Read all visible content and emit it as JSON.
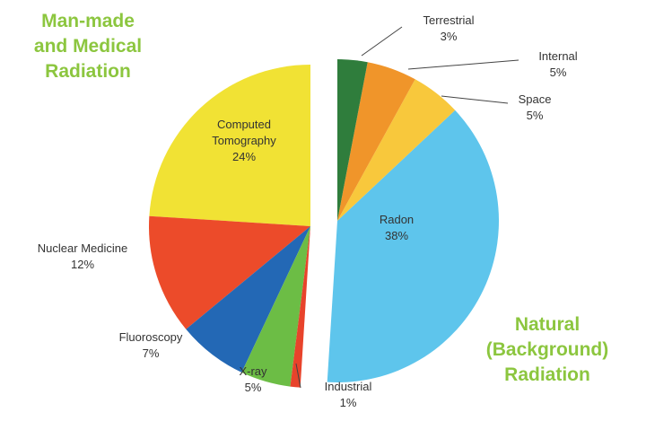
{
  "chart_data": {
    "type": "pie",
    "categories": [
      "Terrestrial",
      "Internal",
      "Space",
      "Radon",
      "Industrial",
      "X-ray",
      "Fluoroscopy",
      "Nuclear Medicine",
      "Computed Tomography"
    ],
    "values": [
      3,
      5,
      5,
      38,
      1,
      5,
      7,
      12,
      24
    ],
    "value_labels": [
      "3%",
      "5%",
      "5%",
      "38%",
      "1%",
      "5%",
      "7%",
      "12%",
      "24%"
    ],
    "colors": [
      "#2f7d3c",
      "#f0952a",
      "#f8c83c",
      "#5ec5ec",
      "#e8432b",
      "#6cbd45",
      "#2368b5",
      "#ec4b2a",
      "#f1e234"
    ],
    "groups": [
      {
        "lines": [
          "Man-made",
          "and Medical",
          "Radiation"
        ]
      },
      {
        "lines": [
          "Natural",
          "(Background)",
          "Radiation"
        ]
      }
    ]
  }
}
